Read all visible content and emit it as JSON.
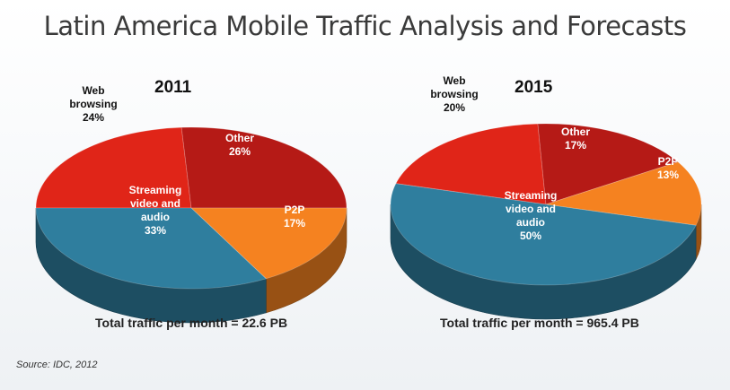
{
  "title": "Latin America Mobile Traffic Analysis and Forecasts",
  "source": "Source: IDC, 2012",
  "colors": {
    "web_browsing": "#e02518",
    "other": "#b51a16",
    "p2p": "#f58220",
    "streaming": "#2f7e9e"
  },
  "chart_data": [
    {
      "type": "pie",
      "title": "2011",
      "footer": "Total traffic per month = 22.6 PB",
      "slices": [
        {
          "key": "web",
          "label_lines": [
            "Web",
            "browsing",
            "24%"
          ],
          "value": 24,
          "color_key": "web_browsing"
        },
        {
          "key": "other",
          "label_lines": [
            "Other",
            "26%"
          ],
          "value": 26,
          "color_key": "other"
        },
        {
          "key": "p2p",
          "label_lines": [
            "P2P",
            "17%"
          ],
          "value": 17,
          "color_key": "p2p"
        },
        {
          "key": "streaming",
          "label_lines": [
            "Streaming",
            "video and",
            "audio",
            "33%"
          ],
          "value": 33,
          "color_key": "streaming"
        }
      ]
    },
    {
      "type": "pie",
      "title": "2015",
      "footer": "Total traffic per month = 965.4 PB",
      "slices": [
        {
          "key": "web",
          "label_lines": [
            "Web",
            "browsing",
            "20%"
          ],
          "value": 20,
          "color_key": "web_browsing"
        },
        {
          "key": "other",
          "label_lines": [
            "Other",
            "17%"
          ],
          "value": 17,
          "color_key": "other"
        },
        {
          "key": "p2p",
          "label_lines": [
            "P2P",
            "13%"
          ],
          "value": 13,
          "color_key": "p2p"
        },
        {
          "key": "streaming",
          "label_lines": [
            "Streaming",
            "video and",
            "audio",
            "50%"
          ],
          "value": 50,
          "color_key": "streaming"
        }
      ]
    }
  ]
}
